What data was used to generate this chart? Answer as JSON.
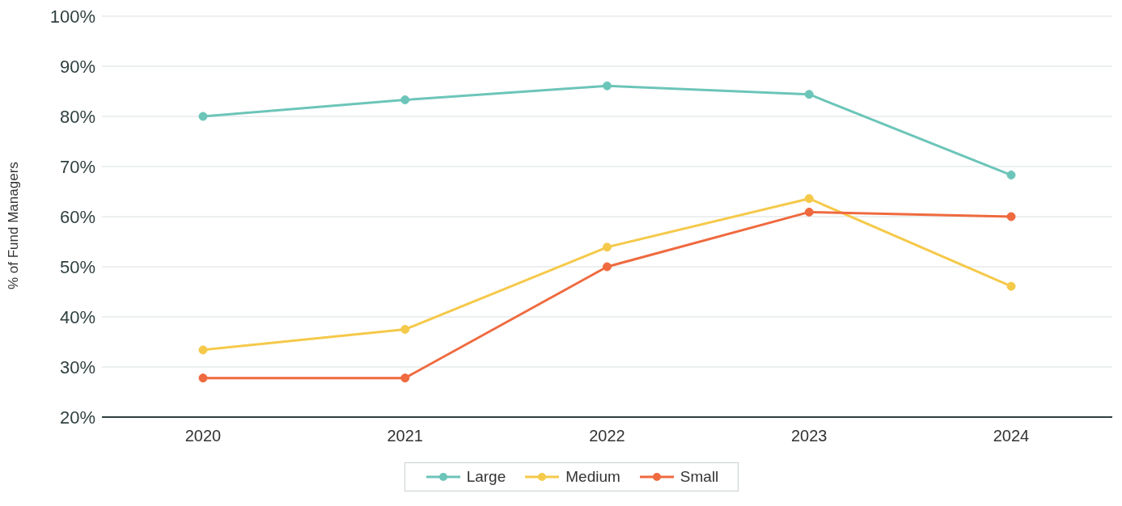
{
  "chart_data": {
    "type": "line",
    "ylabel": "% of Fund Managers",
    "categories": [
      "2020",
      "2021",
      "2022",
      "2023",
      "2024"
    ],
    "series": [
      {
        "name": "Large",
        "color": "#6cc5b9",
        "values": [
          80,
          83.3,
          86.1,
          84.4,
          68.3
        ]
      },
      {
        "name": "Medium",
        "color": "#f5c94a",
        "values": [
          33.4,
          37.5,
          53.9,
          63.6,
          46.1
        ]
      },
      {
        "name": "Small",
        "color": "#ef6a3f",
        "values": [
          27.8,
          27.8,
          50,
          60.9,
          60
        ]
      }
    ],
    "ylim": [
      20,
      100
    ],
    "yticks": [
      {
        "value": 20,
        "label": "20%"
      },
      {
        "value": 30,
        "label": "30%"
      },
      {
        "value": 40,
        "label": "40%"
      },
      {
        "value": 50,
        "label": "50%"
      },
      {
        "value": 60,
        "label": "60%"
      },
      {
        "value": 70,
        "label": "70%"
      },
      {
        "value": 80,
        "label": "80%"
      },
      {
        "value": 90,
        "label": "90%"
      },
      {
        "value": 100,
        "label": "100%"
      }
    ],
    "grid": "y",
    "legend": "bottom",
    "marker": "circle",
    "line_style": "solid"
  }
}
